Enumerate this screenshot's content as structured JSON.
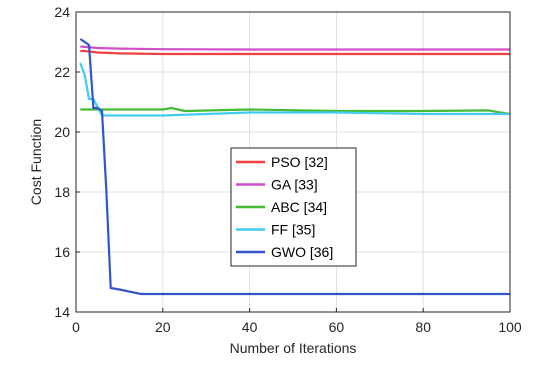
{
  "chart_data": {
    "type": "line",
    "xlabel": "Number of Iterations",
    "ylabel": "Cost Function",
    "xlim": [
      0,
      100
    ],
    "ylim": [
      14,
      24
    ],
    "xticks": [
      0,
      20,
      40,
      60,
      80,
      100
    ],
    "yticks": [
      14,
      16,
      18,
      20,
      22,
      24
    ],
    "grid": true,
    "legend_position": "center",
    "series": [
      {
        "name": "PSO [32]",
        "color": "#f04040",
        "x": [
          1,
          2,
          5,
          10,
          20,
          40,
          60,
          80,
          100
        ],
        "y": [
          22.7,
          22.7,
          22.65,
          22.62,
          22.6,
          22.6,
          22.6,
          22.6,
          22.6
        ]
      },
      {
        "name": "GA [33]",
        "color": "#d050c8",
        "x": [
          1,
          5,
          10,
          20,
          40,
          60,
          80,
          100
        ],
        "y": [
          22.85,
          22.8,
          22.78,
          22.76,
          22.75,
          22.75,
          22.75,
          22.75
        ]
      },
      {
        "name": "ABC [34]",
        "color": "#44bb33",
        "x": [
          1,
          5,
          10,
          20,
          22,
          25,
          40,
          60,
          80,
          95,
          100
        ],
        "y": [
          20.75,
          20.75,
          20.75,
          20.75,
          20.8,
          20.7,
          20.75,
          20.7,
          20.7,
          20.72,
          20.6
        ]
      },
      {
        "name": "FF [35]",
        "color": "#44ccee",
        "x": [
          1,
          2,
          3,
          4,
          6,
          10,
          20,
          30,
          40,
          60,
          80,
          90,
          100
        ],
        "y": [
          22.3,
          21.9,
          21.1,
          21.1,
          20.55,
          20.55,
          20.55,
          20.6,
          20.65,
          20.65,
          20.6,
          20.6,
          20.6
        ]
      },
      {
        "name": "GWO [36]",
        "color": "#3355cc",
        "x": [
          1,
          2,
          3,
          4,
          5,
          6,
          7,
          8,
          10,
          15,
          20,
          40,
          60,
          80,
          100
        ],
        "y": [
          23.1,
          23.0,
          22.9,
          20.8,
          20.8,
          20.7,
          18.0,
          14.8,
          14.75,
          14.6,
          14.6,
          14.6,
          14.6,
          14.6,
          14.6
        ]
      }
    ]
  }
}
